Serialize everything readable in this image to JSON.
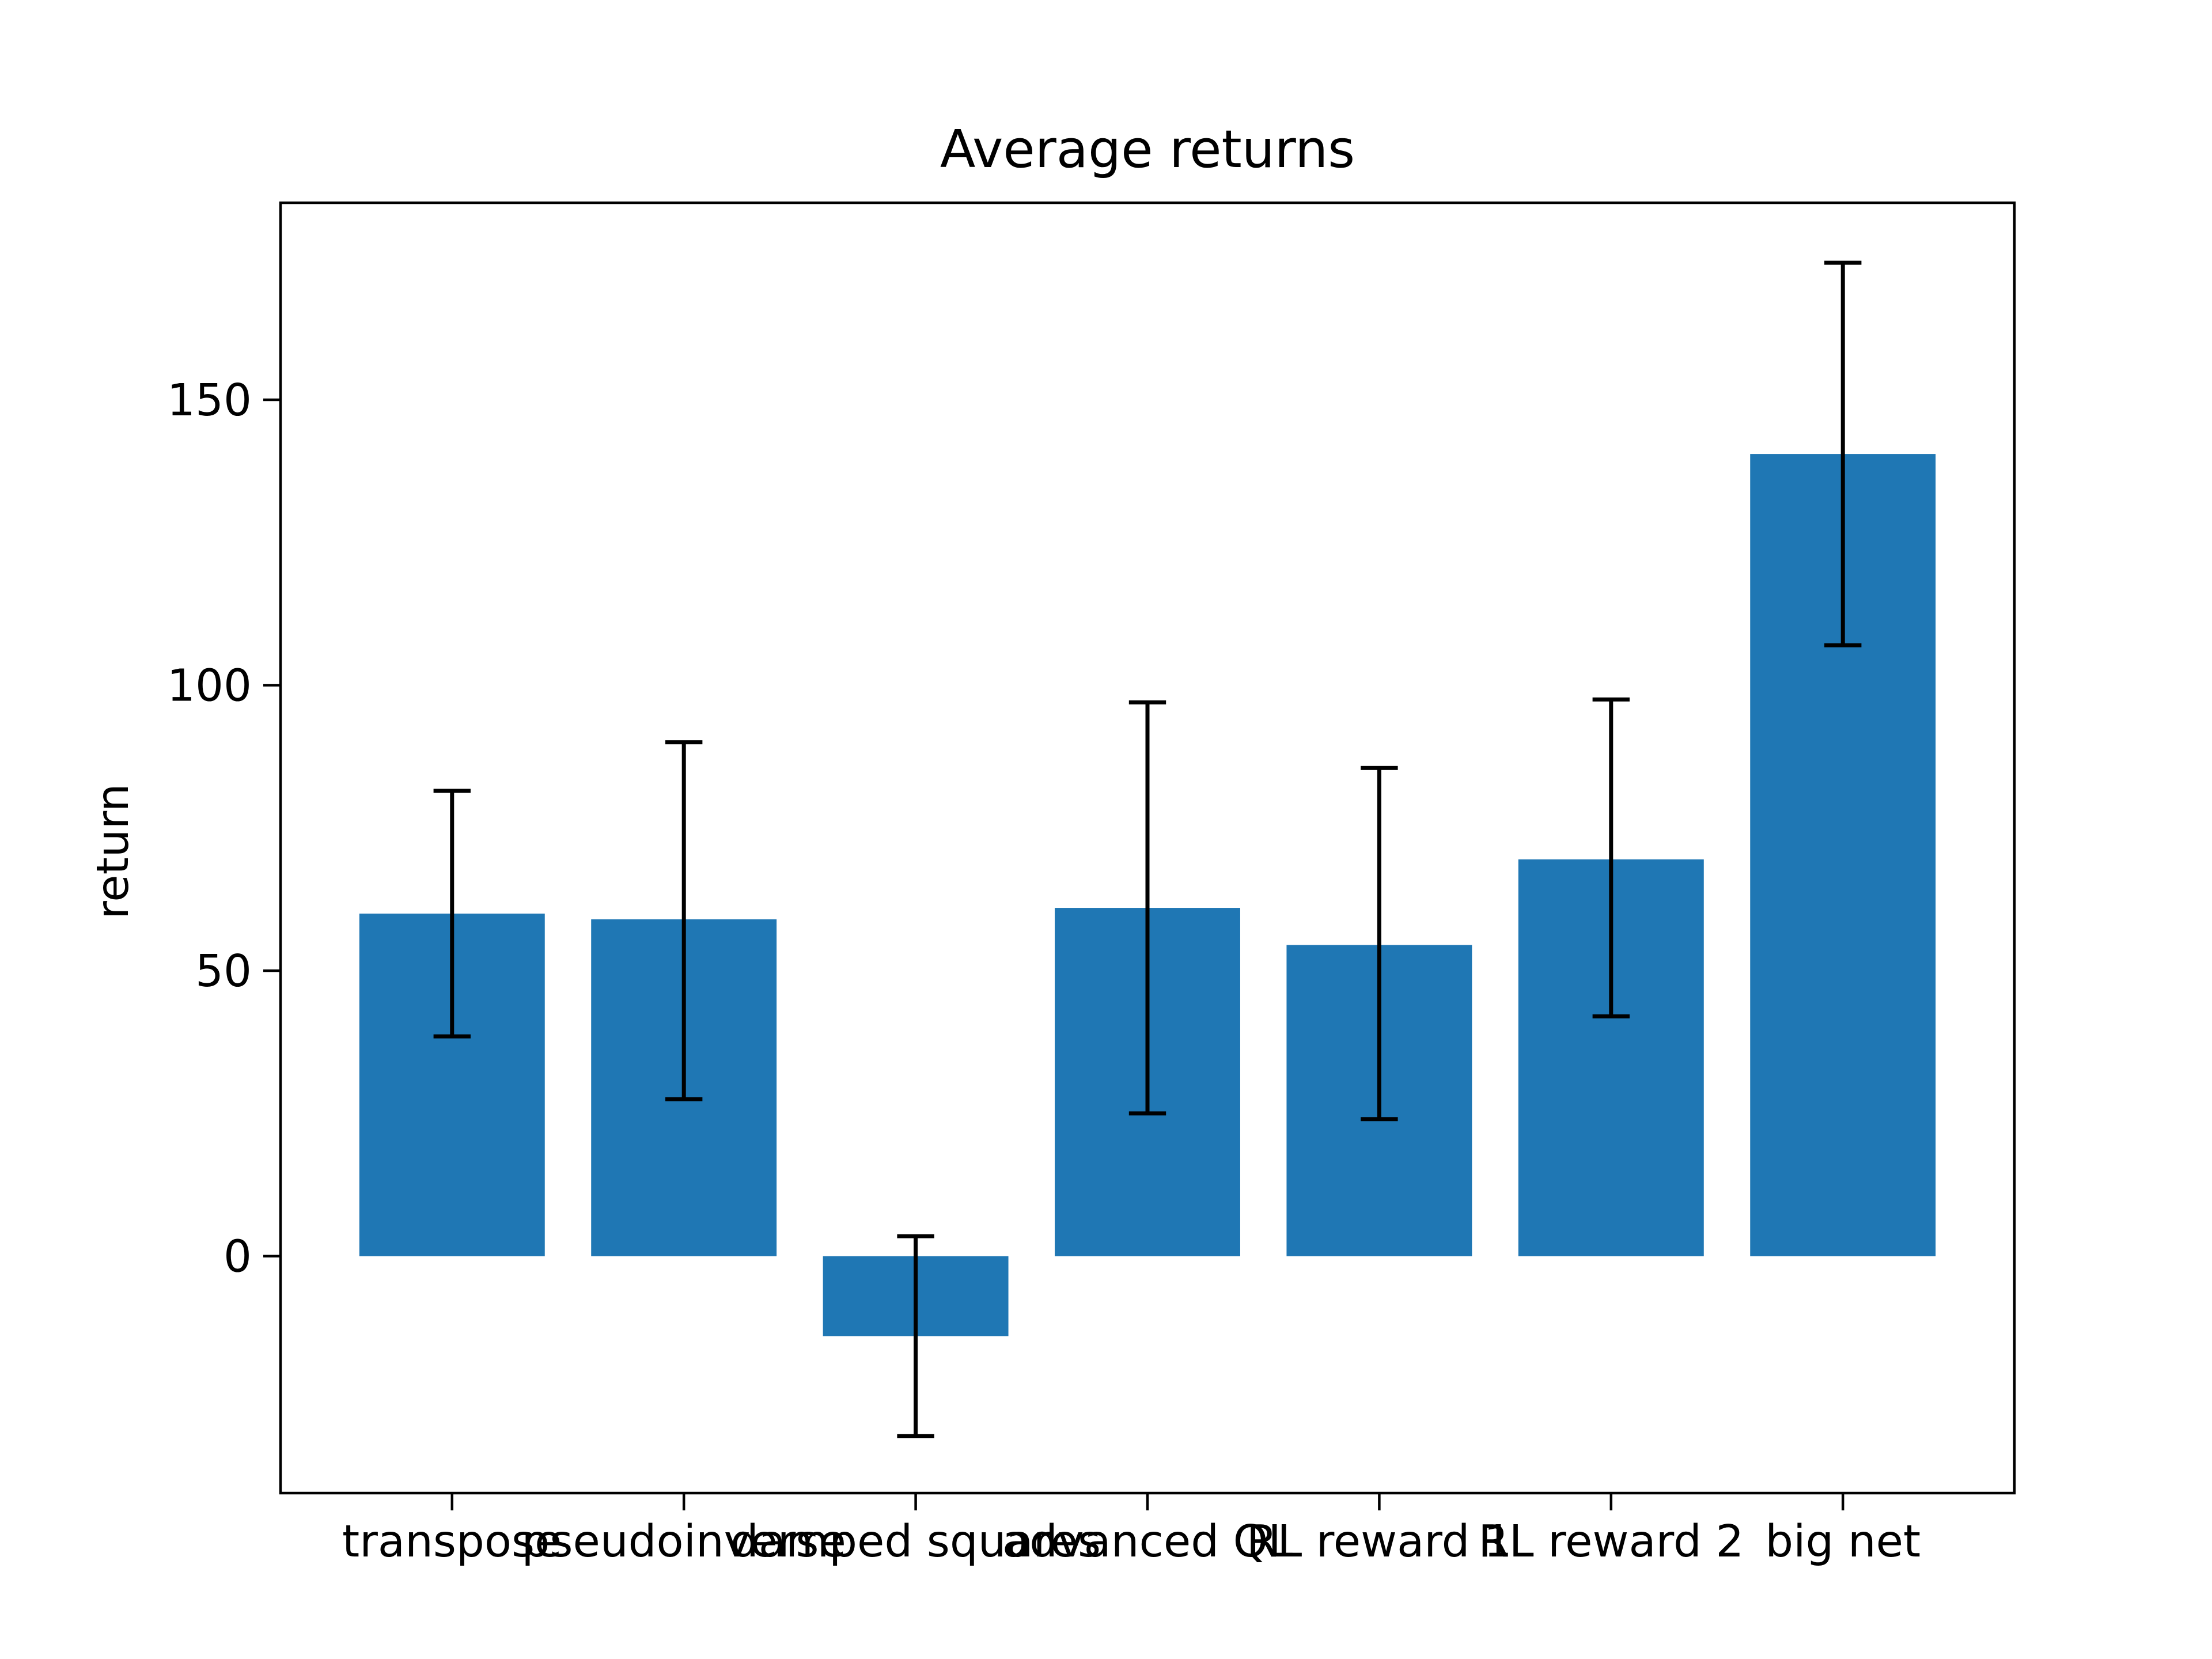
{
  "chart_data": {
    "type": "bar",
    "title": "Average returns",
    "xlabel": "",
    "ylabel": "return",
    "categories": [
      "transpose",
      "pseudoinverse",
      "damped squares",
      "advanced QL",
      "RL reward 1",
      "RL reward 2",
      "big net"
    ],
    "values": [
      60,
      59,
      -14,
      61,
      54.5,
      69.5,
      140.5
    ],
    "error_low": [
      38.5,
      27.5,
      -31.5,
      25,
      24,
      42,
      107
    ],
    "error_high": [
      81.5,
      90,
      3.5,
      97,
      85.5,
      97.5,
      174
    ],
    "ylim": [
      -41.5,
      184.5
    ],
    "yticks": [
      0,
      50,
      100,
      150
    ],
    "grid": false,
    "legend": "none",
    "bar_color": "#1f77b4",
    "error_color": "#000000"
  }
}
